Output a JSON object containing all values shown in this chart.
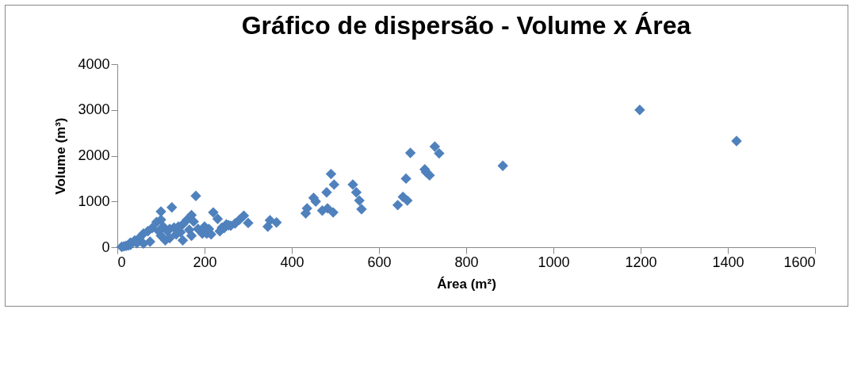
{
  "chart_data": {
    "type": "scatter",
    "title": "Gráfico de dispersão - Volume x Área",
    "xlabel": "Área (m²)",
    "ylabel": "Volume (m³)",
    "marker": "diamond",
    "grid": false,
    "legend": false,
    "xlim": [
      0,
      1600
    ],
    "ylim": [
      0,
      4000
    ],
    "xticks": [
      0,
      200,
      400,
      600,
      800,
      1000,
      1200,
      1400,
      1600
    ],
    "yticks": [
      0,
      1000,
      2000,
      3000,
      4000
    ],
    "series": [
      {
        "color": "#4f81bd",
        "x": [
          1198,
          1420,
          884,
          728,
          738,
          672,
          705,
          708,
          716,
          662,
          655,
          665,
          643,
          490,
          540,
          548,
          555,
          560,
          497,
          480,
          495,
          482,
          435,
          432,
          450,
          455,
          470,
          345,
          350,
          365,
          290,
          300,
          280,
          270,
          250,
          240,
          260,
          180,
          125,
          100,
          220,
          230,
          170,
          160,
          150,
          140,
          130,
          120,
          95,
          45,
          30,
          25,
          20,
          15,
          10,
          200,
          210,
          205,
          215,
          235,
          245,
          255,
          175,
          185,
          195,
          165,
          145,
          135,
          115,
          105,
          100,
          90,
          80,
          70,
          60,
          50,
          40,
          30,
          120,
          150,
          170,
          100,
          110,
          60,
          75
        ],
        "values": [
          3000,
          2320,
          1780,
          2200,
          2050,
          2060,
          1700,
          1640,
          1570,
          1500,
          1100,
          1020,
          920,
          1600,
          1370,
          1200,
          1020,
          830,
          1370,
          1200,
          760,
          850,
          850,
          740,
          1080,
          1000,
          800,
          450,
          590,
          540,
          690,
          530,
          600,
          520,
          500,
          430,
          470,
          1120,
          870,
          780,
          760,
          620,
          700,
          600,
          500,
          450,
          430,
          400,
          350,
          90,
          50,
          40,
          30,
          20,
          10,
          450,
          400,
          300,
          280,
          350,
          420,
          480,
          560,
          400,
          300,
          380,
          330,
          280,
          350,
          450,
          600,
          550,
          420,
          350,
          300,
          200,
          150,
          100,
          200,
          150,
          250,
          250,
          150,
          80,
          120
        ]
      }
    ]
  }
}
